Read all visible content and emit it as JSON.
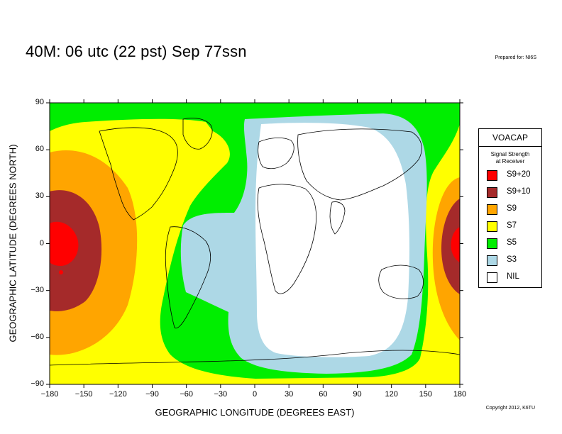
{
  "title": "40M:  06 utc (22 pst) Sep 77ssn",
  "prepared_by": "Prepared for: NI6S",
  "copyright": "Copyright 2012, K6TU",
  "axes": {
    "xlabel": "GEOGRAPHIC LONGITUDE (DEGREES EAST)",
    "ylabel": "GEOGRAPHIC LATITUDE (DEGREES NORTH)",
    "xticks": [
      "−180",
      "−150",
      "−120",
      "−90",
      "−60",
      "−30",
      "0",
      "30",
      "60",
      "90",
      "120",
      "150",
      "180"
    ],
    "yticks": [
      "90",
      "60",
      "30",
      "0",
      "−30",
      "−60",
      "−90"
    ],
    "xlim": [
      -180,
      180
    ],
    "ylim": [
      -90,
      90
    ]
  },
  "legend": {
    "title": "VOACAP",
    "subtitle_line1": "Signal Strength",
    "subtitle_line2": "at Receiver",
    "items": [
      {
        "label": "S9+20",
        "color": "#ff0000"
      },
      {
        "label": "S9+10",
        "color": "#a52a2a"
      },
      {
        "label": "S9",
        "color": "#ffa500"
      },
      {
        "label": "S7",
        "color": "#ffff00"
      },
      {
        "label": "S5",
        "color": "#00ee00"
      },
      {
        "label": "S3",
        "color": "#add8e6"
      },
      {
        "label": "NIL",
        "color": "#ffffff"
      }
    ]
  },
  "colors": {
    "s9p20": "#ff0000",
    "s9p10": "#a52a2a",
    "s9": "#ffa500",
    "s7": "#ffff00",
    "s5": "#00ee00",
    "s3": "#add8e6",
    "nil": "#ffffff",
    "coast": "#000000"
  }
}
